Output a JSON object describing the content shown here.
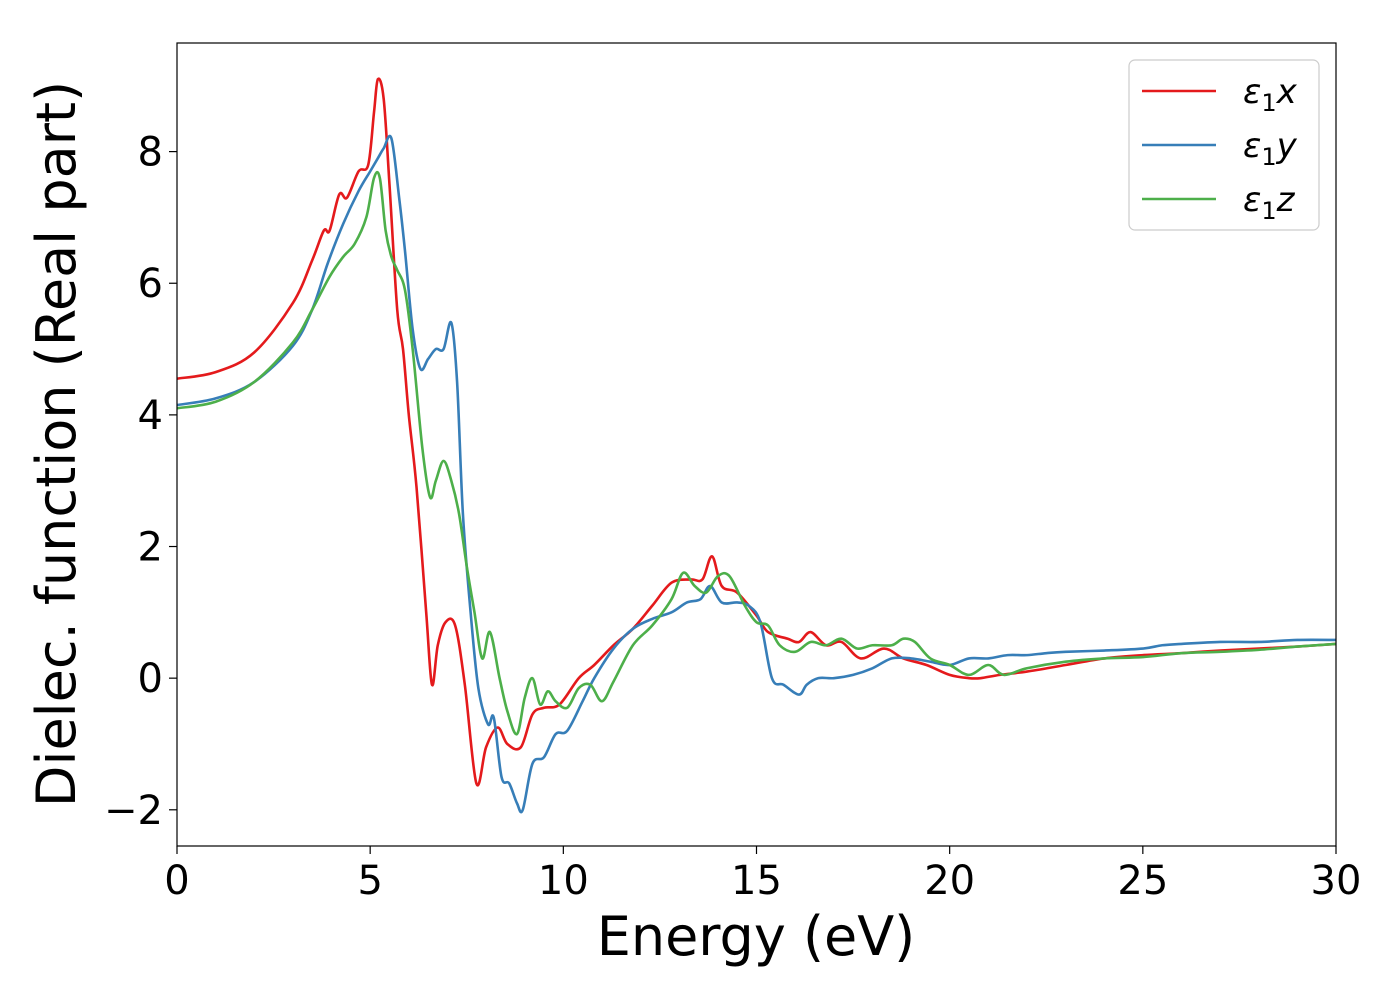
{
  "chart_data": {
    "type": "line",
    "title": "",
    "xlabel": "Energy (eV)",
    "ylabel": "Dielec. function (Real part)",
    "xlim": [
      0,
      30
    ],
    "ylim": [
      -2.55,
      9.65
    ],
    "xticks": [
      0,
      5,
      10,
      15,
      20,
      25,
      30
    ],
    "yticks": [
      -2,
      0,
      2,
      4,
      6,
      8
    ],
    "ytick_labels": [
      "−2",
      "0",
      "2",
      "4",
      "6",
      "8"
    ],
    "grid": false,
    "legend_position": "top-right",
    "series": [
      {
        "name": "ε₁x",
        "legend": {
          "base": "ε",
          "sub": "1",
          "var": "x"
        },
        "color": "#e41a1c",
        "x": [
          0,
          1,
          2,
          3,
          3.5,
          3.8,
          3.95,
          4.2,
          4.4,
          4.7,
          4.95,
          5.1,
          5.2,
          5.35,
          5.5,
          5.7,
          5.85,
          6.0,
          6.2,
          6.45,
          6.6,
          6.75,
          6.95,
          7.2,
          7.45,
          7.75,
          8.0,
          8.3,
          8.55,
          8.9,
          9.2,
          9.5,
          9.9,
          10.4,
          10.8,
          11.3,
          11.8,
          12.3,
          12.8,
          13.3,
          13.6,
          13.85,
          14.1,
          14.5,
          15.0,
          15.3,
          15.8,
          16.1,
          16.4,
          16.8,
          17.2,
          17.7,
          18.3,
          18.8,
          19.4,
          20.0,
          20.5,
          20.8,
          21.3,
          22.0,
          23.0,
          24.0,
          25.0,
          26.0,
          27.0,
          28.0,
          29.0,
          30.0
        ],
        "y": [
          4.55,
          4.65,
          4.95,
          5.7,
          6.35,
          6.8,
          6.8,
          7.35,
          7.3,
          7.7,
          7.8,
          8.6,
          9.1,
          8.8,
          7.5,
          5.6,
          5.0,
          4.0,
          2.9,
          1.0,
          -0.1,
          0.5,
          0.85,
          0.8,
          -0.1,
          -1.6,
          -1.05,
          -0.75,
          -1.0,
          -1.05,
          -0.55,
          -0.45,
          -0.4,
          0.0,
          0.2,
          0.5,
          0.75,
          1.1,
          1.45,
          1.5,
          1.5,
          1.85,
          1.4,
          1.3,
          0.95,
          0.7,
          0.6,
          0.55,
          0.7,
          0.5,
          0.55,
          0.3,
          0.45,
          0.3,
          0.2,
          0.05,
          0.0,
          0.0,
          0.05,
          0.1,
          0.2,
          0.3,
          0.35,
          0.38,
          0.42,
          0.45,
          0.48,
          0.52
        ]
      },
      {
        "name": "ε₁y",
        "legend": {
          "base": "ε",
          "sub": "1",
          "var": "y"
        },
        "color": "#377eb8",
        "x": [
          0,
          1,
          2,
          3,
          3.5,
          3.9,
          4.3,
          4.7,
          5.0,
          5.2,
          5.35,
          5.55,
          5.75,
          5.9,
          6.1,
          6.3,
          6.5,
          6.7,
          6.9,
          7.1,
          7.25,
          7.4,
          7.6,
          7.8,
          8.05,
          8.2,
          8.4,
          8.6,
          8.8,
          8.95,
          9.2,
          9.5,
          9.8,
          10.1,
          10.5,
          10.8,
          11.3,
          11.8,
          12.3,
          12.8,
          13.2,
          13.55,
          13.8,
          14.1,
          14.5,
          14.8,
          15.1,
          15.4,
          15.7,
          16.1,
          16.3,
          16.6,
          17.0,
          17.5,
          18.0,
          18.5,
          19.0,
          19.5,
          20.0,
          20.5,
          21.0,
          21.5,
          22.0,
          22.5,
          23.0,
          24.0,
          25.0,
          25.5,
          26.0,
          27.0,
          28.0,
          29.0,
          30.0
        ],
        "y": [
          4.15,
          4.25,
          4.5,
          5.05,
          5.6,
          6.3,
          6.9,
          7.4,
          7.7,
          7.9,
          8.05,
          8.2,
          7.3,
          6.5,
          5.3,
          4.7,
          4.85,
          5.0,
          5.0,
          5.4,
          4.5,
          2.5,
          1.0,
          -0.15,
          -0.7,
          -0.6,
          -1.5,
          -1.6,
          -1.9,
          -2.0,
          -1.3,
          -1.2,
          -0.85,
          -0.8,
          -0.35,
          0.0,
          0.45,
          0.75,
          0.9,
          1.0,
          1.15,
          1.2,
          1.4,
          1.15,
          1.15,
          1.1,
          0.85,
          0.0,
          -0.1,
          -0.25,
          -0.1,
          0.0,
          0.0,
          0.05,
          0.15,
          0.3,
          0.3,
          0.25,
          0.2,
          0.3,
          0.3,
          0.35,
          0.35,
          0.38,
          0.4,
          0.42,
          0.45,
          0.5,
          0.52,
          0.55,
          0.55,
          0.58,
          0.58
        ]
      },
      {
        "name": "ε₁z",
        "legend": {
          "base": "ε",
          "sub": "1",
          "var": "z"
        },
        "color": "#4daf4a",
        "x": [
          0,
          1,
          2,
          3,
          3.5,
          3.95,
          4.3,
          4.6,
          4.9,
          5.1,
          5.25,
          5.4,
          5.55,
          5.7,
          5.9,
          6.1,
          6.35,
          6.55,
          6.7,
          6.9,
          7.1,
          7.3,
          7.5,
          7.7,
          7.9,
          8.1,
          8.35,
          8.55,
          8.8,
          9.0,
          9.2,
          9.4,
          9.6,
          9.8,
          10.1,
          10.4,
          10.7,
          11.0,
          11.3,
          11.8,
          12.3,
          12.8,
          13.1,
          13.4,
          13.7,
          14.0,
          14.3,
          14.7,
          15.0,
          15.3,
          15.6,
          16.0,
          16.4,
          16.8,
          17.2,
          17.6,
          18.0,
          18.5,
          18.8,
          19.1,
          19.5,
          20.0,
          20.5,
          21.0,
          21.4,
          22.0,
          23.0,
          24.0,
          25.0,
          26.0,
          27.0,
          28.0,
          29.0,
          30.0
        ],
        "y": [
          4.1,
          4.2,
          4.5,
          5.1,
          5.6,
          6.1,
          6.4,
          6.6,
          7.0,
          7.6,
          7.6,
          6.8,
          6.4,
          6.2,
          5.9,
          5.0,
          3.5,
          2.75,
          3.0,
          3.3,
          3.0,
          2.5,
          1.7,
          1.0,
          0.3,
          0.7,
          0.0,
          -0.5,
          -0.85,
          -0.3,
          0.0,
          -0.4,
          -0.2,
          -0.35,
          -0.45,
          -0.15,
          -0.1,
          -0.35,
          -0.05,
          0.5,
          0.8,
          1.2,
          1.6,
          1.4,
          1.3,
          1.55,
          1.55,
          1.1,
          0.85,
          0.8,
          0.5,
          0.4,
          0.55,
          0.5,
          0.6,
          0.45,
          0.5,
          0.5,
          0.6,
          0.55,
          0.3,
          0.2,
          0.05,
          0.2,
          0.05,
          0.15,
          0.25,
          0.3,
          0.32,
          0.38,
          0.4,
          0.43,
          0.48,
          0.52
        ]
      }
    ]
  }
}
